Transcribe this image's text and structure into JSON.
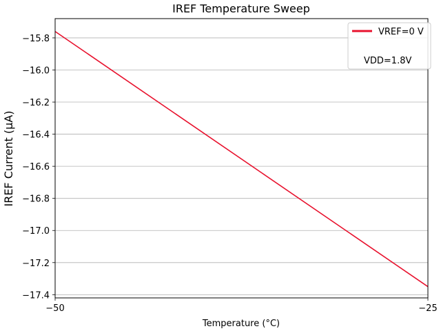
{
  "chart_data": {
    "type": "line",
    "title": "IREF Temperature Sweep",
    "xlabel": "Temperature (°C)",
    "ylabel": "IREF Current (µA)",
    "xlim": [
      -50,
      -25
    ],
    "ylim": [
      -17.42,
      -15.68
    ],
    "x_ticks": [
      -50,
      -25
    ],
    "x_tick_labels": [
      "−50",
      "−25"
    ],
    "y_ticks": [
      -15.8,
      -16.0,
      -16.2,
      -16.4,
      -16.6,
      -16.8,
      -17.0,
      -17.2,
      -17.4
    ],
    "y_tick_labels": [
      "−15.8",
      "−16.0",
      "−16.2",
      "−16.4",
      "−16.6",
      "−16.8",
      "−17.0",
      "−17.2",
      "−17.4"
    ],
    "grid": "horizontal",
    "legend_position": "top-right",
    "legend_note": "VDD=1.8V",
    "series": [
      {
        "name": "VREF=0 V",
        "color": "#e8112d",
        "x": [
          -50,
          -25
        ],
        "y": [
          -15.76,
          -17.35
        ]
      }
    ]
  }
}
